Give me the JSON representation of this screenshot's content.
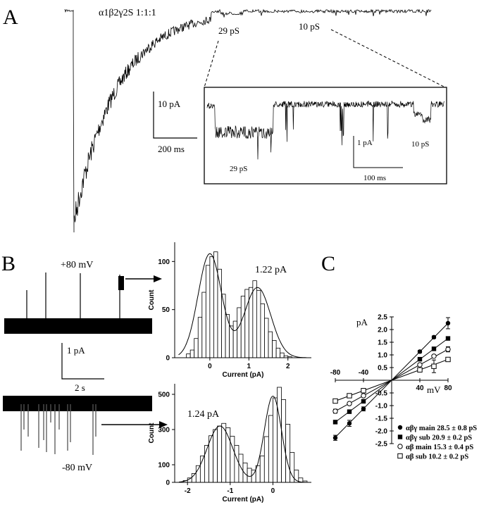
{
  "panels": {
    "A": {
      "letter": "A",
      "construct": "α1β2γ2S 1:1:1",
      "level_29": "29 pS",
      "level_10": "10 pS",
      "scale_current": "10 pA",
      "scale_time": "200 ms",
      "inset": {
        "level_29": "29 pS",
        "level_10": "10 pS",
        "scale_current": "1 pA",
        "scale_time": "100 ms"
      }
    },
    "B": {
      "letter": "B",
      "top_voltage": "+80 mV",
      "bottom_voltage": "-80 mV",
      "scale_current": "1 pA",
      "scale_time": "2 s"
    },
    "C": {
      "letter": "C"
    }
  },
  "chart_data": [
    {
      "id": "hist-top",
      "type": "bar",
      "xlabel": "Current (pA)",
      "ylabel": "Count",
      "xlim": [
        -0.9,
        2.6
      ],
      "ylim": [
        0,
        120
      ],
      "xticks": [
        0,
        1,
        2
      ],
      "yticks": [
        0,
        50,
        100
      ],
      "bin_width": 0.1,
      "bin_start": -0.6,
      "values": [
        4,
        8,
        20,
        42,
        68,
        96,
        105,
        110,
        92,
        66,
        45,
        33,
        38,
        52,
        64,
        71,
        73,
        80,
        70,
        56,
        41,
        27,
        18,
        10,
        5,
        2,
        1
      ],
      "fit_peaks": [
        {
          "mean": 0.0,
          "amp": 108,
          "sd": 0.3
        },
        {
          "mean": 1.22,
          "amp": 73,
          "sd": 0.34
        }
      ],
      "annotation": "1.22 pA"
    },
    {
      "id": "hist-bottom",
      "type": "bar",
      "xlabel": "Current (pA)",
      "ylabel": "Count",
      "xlim": [
        -2.3,
        0.9
      ],
      "ylim": [
        0,
        560
      ],
      "xticks": [
        -2,
        -1,
        0
      ],
      "yticks": [
        0,
        100,
        300,
        500
      ],
      "bin_width": 0.1,
      "bin_start": -2.1,
      "values": [
        10,
        25,
        50,
        95,
        150,
        210,
        265,
        300,
        320,
        335,
        310,
        262,
        210,
        160,
        110,
        80,
        70,
        95,
        150,
        260,
        380,
        480,
        540,
        470,
        330,
        170,
        70,
        25,
        8
      ],
      "fit_peaks": [
        {
          "mean": -1.24,
          "amp": 320,
          "sd": 0.3
        },
        {
          "mean": 0.0,
          "amp": 490,
          "sd": 0.2
        }
      ],
      "annotation": "1.24 pA"
    },
    {
      "id": "iv-plot",
      "type": "scatter",
      "xlabel": "mV",
      "ylabel": "pA",
      "xlim": [
        -80,
        80
      ],
      "ylim": [
        -2.5,
        2.5
      ],
      "xticks": [
        -80,
        -40,
        40,
        80
      ],
      "yticks": [
        -2.5,
        -2.0,
        -1.5,
        -1.0,
        -0.5,
        0.5,
        1.0,
        1.5,
        2.0,
        2.5
      ],
      "series": [
        {
          "name": "αβγ main 28.5 ± 0.8 pS",
          "marker": "filled-circle",
          "x": [
            -80,
            -60,
            -40,
            40,
            60,
            80
          ],
          "y": [
            -2.27,
            -1.7,
            -1.13,
            1.13,
            1.7,
            2.25
          ],
          "err": [
            0.1,
            0.12,
            0.08,
            0.05,
            0.05,
            0.22
          ]
        },
        {
          "name": "αβγ sub  20.9 ± 0.2 pS",
          "marker": "filled-square",
          "x": [
            -80,
            -60,
            -40,
            40,
            60,
            80
          ],
          "y": [
            -1.65,
            -1.24,
            -0.83,
            0.83,
            1.24,
            1.65
          ],
          "err": [
            0.05,
            0.05,
            0.05,
            0.05,
            0.05,
            0.05
          ]
        },
        {
          "name": "αβ main  15.3 ± 0.4 pS",
          "marker": "open-circle",
          "x": [
            -80,
            -60,
            -40,
            40,
            60,
            80
          ],
          "y": [
            -1.22,
            -0.92,
            -0.61,
            0.61,
            0.95,
            1.22
          ],
          "err": [
            0.08,
            0.05,
            0.05,
            0.05,
            0.05,
            0.1
          ]
        },
        {
          "name": "αβ sub   10.2 ± 0.2 pS",
          "marker": "open-square",
          "x": [
            -80,
            -60,
            -40,
            40,
            60,
            80
          ],
          "y": [
            -0.82,
            -0.61,
            -0.41,
            0.41,
            0.55,
            0.82
          ],
          "err": [
            0.05,
            0.05,
            0.05,
            0.05,
            0.25,
            0.05
          ]
        }
      ],
      "legend": "bottom-right"
    }
  ]
}
